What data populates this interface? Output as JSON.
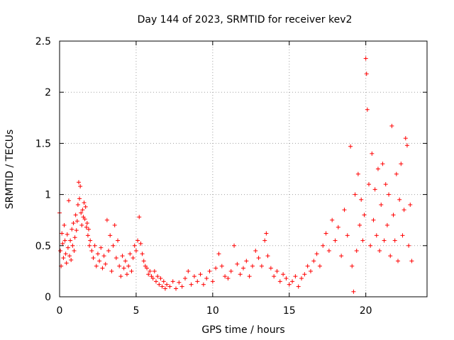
{
  "chart_data": {
    "type": "scatter",
    "title": "Day 144 of 2023, SRMTID for receiver kev2",
    "xlabel": "GPS time / hours",
    "ylabel": "SRMTID / TECUs",
    "xlim": [
      0,
      24
    ],
    "ylim": [
      0,
      2.5
    ],
    "x_ticks": [
      0,
      5,
      10,
      15,
      20
    ],
    "x_tick_labels": [
      "0",
      "5",
      "10",
      "15",
      "20"
    ],
    "y_ticks": [
      0,
      0.5,
      1,
      1.5,
      2,
      2.5
    ],
    "y_tick_labels": [
      "0",
      "0.5",
      "1",
      "1.5",
      "2",
      "2.5"
    ],
    "grid": true,
    "marker": "+",
    "series": [
      {
        "name": "SRMTID",
        "color": "#ff0000",
        "points": [
          [
            0.0,
            0.82
          ],
          [
            0.05,
            0.45
          ],
          [
            0.1,
            0.3
          ],
          [
            0.15,
            0.62
          ],
          [
            0.2,
            0.52
          ],
          [
            0.25,
            0.38
          ],
          [
            0.3,
            0.7
          ],
          [
            0.35,
            0.55
          ],
          [
            0.4,
            0.42
          ],
          [
            0.45,
            0.33
          ],
          [
            0.5,
            0.61
          ],
          [
            0.55,
            0.48
          ],
          [
            0.6,
            0.94
          ],
          [
            0.65,
            0.4
          ],
          [
            0.7,
            0.55
          ],
          [
            0.75,
            0.36
          ],
          [
            0.8,
            0.66
          ],
          [
            0.85,
            0.5
          ],
          [
            0.9,
            0.72
          ],
          [
            0.95,
            0.45
          ],
          [
            1.0,
            0.58
          ],
          [
            1.05,
            0.8
          ],
          [
            1.1,
            0.65
          ],
          [
            1.15,
            0.74
          ],
          [
            1.2,
            0.9
          ],
          [
            1.25,
            1.12
          ],
          [
            1.3,
            0.96
          ],
          [
            1.35,
            1.08
          ],
          [
            1.4,
            0.82
          ],
          [
            1.45,
            0.7
          ],
          [
            1.5,
            0.85
          ],
          [
            1.55,
            0.78
          ],
          [
            1.6,
            0.92
          ],
          [
            1.65,
            0.76
          ],
          [
            1.7,
            0.88
          ],
          [
            1.75,
            0.68
          ],
          [
            1.8,
            0.72
          ],
          [
            1.85,
            0.6
          ],
          [
            1.9,
            0.66
          ],
          [
            1.95,
            0.5
          ],
          [
            2.0,
            0.55
          ],
          [
            2.1,
            0.45
          ],
          [
            2.2,
            0.38
          ],
          [
            2.3,
            0.5
          ],
          [
            2.4,
            0.3
          ],
          [
            2.5,
            0.42
          ],
          [
            2.6,
            0.35
          ],
          [
            2.7,
            0.48
          ],
          [
            2.8,
            0.28
          ],
          [
            2.9,
            0.4
          ],
          [
            3.0,
            0.32
          ],
          [
            3.1,
            0.75
          ],
          [
            3.2,
            0.45
          ],
          [
            3.3,
            0.6
          ],
          [
            3.4,
            0.25
          ],
          [
            3.5,
            0.5
          ],
          [
            3.6,
            0.7
          ],
          [
            3.7,
            0.38
          ],
          [
            3.8,
            0.55
          ],
          [
            3.9,
            0.3
          ],
          [
            4.0,
            0.2
          ],
          [
            4.1,
            0.4
          ],
          [
            4.2,
            0.28
          ],
          [
            4.3,
            0.35
          ],
          [
            4.4,
            0.22
          ],
          [
            4.5,
            0.3
          ],
          [
            4.6,
            0.42
          ],
          [
            4.7,
            0.25
          ],
          [
            4.8,
            0.38
          ],
          [
            4.9,
            0.5
          ],
          [
            5.0,
            0.45
          ],
          [
            5.1,
            0.55
          ],
          [
            5.2,
            0.78
          ],
          [
            5.3,
            0.52
          ],
          [
            5.4,
            0.42
          ],
          [
            5.5,
            0.35
          ],
          [
            5.6,
            0.3
          ],
          [
            5.7,
            0.28
          ],
          [
            5.8,
            0.22
          ],
          [
            5.9,
            0.25
          ],
          [
            6.0,
            0.2
          ],
          [
            6.1,
            0.18
          ],
          [
            6.2,
            0.25
          ],
          [
            6.3,
            0.15
          ],
          [
            6.4,
            0.2
          ],
          [
            6.5,
            0.12
          ],
          [
            6.6,
            0.18
          ],
          [
            6.7,
            0.1
          ],
          [
            6.8,
            0.15
          ],
          [
            6.9,
            0.08
          ],
          [
            7.0,
            0.12
          ],
          [
            7.2,
            0.1
          ],
          [
            7.4,
            0.15
          ],
          [
            7.6,
            0.08
          ],
          [
            7.8,
            0.14
          ],
          [
            8.0,
            0.1
          ],
          [
            8.2,
            0.18
          ],
          [
            8.4,
            0.25
          ],
          [
            8.6,
            0.12
          ],
          [
            8.8,
            0.2
          ],
          [
            9.0,
            0.15
          ],
          [
            9.2,
            0.22
          ],
          [
            9.4,
            0.12
          ],
          [
            9.6,
            0.18
          ],
          [
            9.8,
            0.25
          ],
          [
            10.0,
            0.15
          ],
          [
            10.2,
            0.28
          ],
          [
            10.4,
            0.42
          ],
          [
            10.6,
            0.3
          ],
          [
            10.8,
            0.2
          ],
          [
            11.0,
            0.18
          ],
          [
            11.2,
            0.25
          ],
          [
            11.4,
            0.5
          ],
          [
            11.6,
            0.32
          ],
          [
            11.8,
            0.22
          ],
          [
            12.0,
            0.28
          ],
          [
            12.2,
            0.35
          ],
          [
            12.4,
            0.2
          ],
          [
            12.6,
            0.3
          ],
          [
            12.8,
            0.45
          ],
          [
            13.0,
            0.38
          ],
          [
            13.2,
            0.3
          ],
          [
            13.4,
            0.55
          ],
          [
            13.5,
            0.62
          ],
          [
            13.6,
            0.4
          ],
          [
            13.8,
            0.28
          ],
          [
            14.0,
            0.2
          ],
          [
            14.2,
            0.25
          ],
          [
            14.4,
            0.15
          ],
          [
            14.6,
            0.22
          ],
          [
            14.8,
            0.18
          ],
          [
            15.0,
            0.12
          ],
          [
            15.2,
            0.15
          ],
          [
            15.4,
            0.2
          ],
          [
            15.6,
            0.1
          ],
          [
            15.8,
            0.18
          ],
          [
            16.0,
            0.22
          ],
          [
            16.2,
            0.3
          ],
          [
            16.4,
            0.25
          ],
          [
            16.6,
            0.35
          ],
          [
            16.8,
            0.42
          ],
          [
            17.0,
            0.3
          ],
          [
            17.2,
            0.5
          ],
          [
            17.4,
            0.62
          ],
          [
            17.6,
            0.45
          ],
          [
            17.8,
            0.75
          ],
          [
            18.0,
            0.55
          ],
          [
            18.2,
            0.68
          ],
          [
            18.4,
            0.4
          ],
          [
            18.6,
            0.85
          ],
          [
            18.8,
            0.6
          ],
          [
            19.0,
            1.47
          ],
          [
            19.1,
            0.3
          ],
          [
            19.2,
            0.05
          ],
          [
            19.3,
            1.0
          ],
          [
            19.4,
            0.45
          ],
          [
            19.5,
            1.2
          ],
          [
            19.6,
            0.7
          ],
          [
            19.7,
            0.95
          ],
          [
            19.8,
            0.55
          ],
          [
            19.9,
            0.8
          ],
          [
            20.0,
            2.33
          ],
          [
            20.05,
            2.18
          ],
          [
            20.1,
            1.83
          ],
          [
            20.2,
            1.1
          ],
          [
            20.3,
            0.5
          ],
          [
            20.4,
            1.4
          ],
          [
            20.5,
            0.75
          ],
          [
            20.6,
            1.05
          ],
          [
            20.7,
            0.6
          ],
          [
            20.8,
            1.25
          ],
          [
            20.9,
            0.45
          ],
          [
            21.0,
            0.9
          ],
          [
            21.1,
            1.3
          ],
          [
            21.2,
            0.55
          ],
          [
            21.3,
            1.1
          ],
          [
            21.4,
            0.7
          ],
          [
            21.5,
            1.0
          ],
          [
            21.6,
            0.4
          ],
          [
            21.7,
            1.67
          ],
          [
            21.8,
            0.8
          ],
          [
            21.9,
            0.55
          ],
          [
            22.0,
            1.2
          ],
          [
            22.1,
            0.35
          ],
          [
            22.2,
            0.95
          ],
          [
            22.3,
            1.3
          ],
          [
            22.4,
            0.6
          ],
          [
            22.5,
            0.85
          ],
          [
            22.6,
            1.55
          ],
          [
            22.7,
            1.48
          ],
          [
            22.8,
            0.5
          ],
          [
            22.9,
            0.9
          ],
          [
            23.0,
            0.35
          ]
        ]
      }
    ]
  }
}
